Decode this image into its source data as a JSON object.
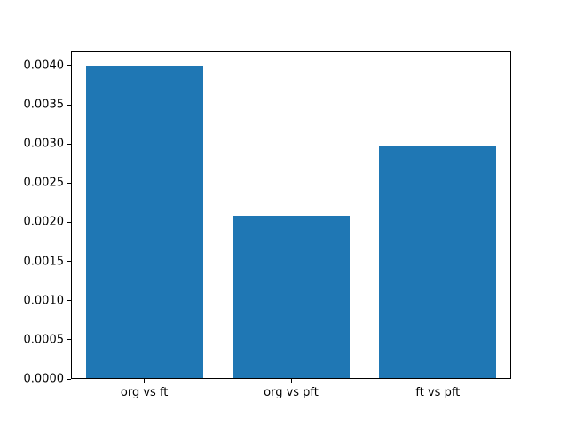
{
  "chart_data": {
    "type": "bar",
    "title": "",
    "xlabel": "",
    "ylabel": "",
    "categories": [
      "org vs ft",
      "org vs pft",
      "ft vs pft"
    ],
    "values": [
      0.00399,
      0.00207,
      0.00296
    ],
    "ylim": [
      0,
      0.00418
    ],
    "yticks": [
      0.0,
      0.0005,
      0.001,
      0.0015,
      0.002,
      0.0025,
      0.003,
      0.0035,
      0.004
    ],
    "ytick_labels": [
      "0.0000",
      "0.0005",
      "0.0010",
      "0.0015",
      "0.0020",
      "0.0025",
      "0.0030",
      "0.0035",
      "0.0040"
    ],
    "bar_color": "#1f77b4",
    "bar_width_fraction": 0.8,
    "background_color": "#ffffff",
    "spine_color": "#000000",
    "grid": false,
    "legend": null
  }
}
